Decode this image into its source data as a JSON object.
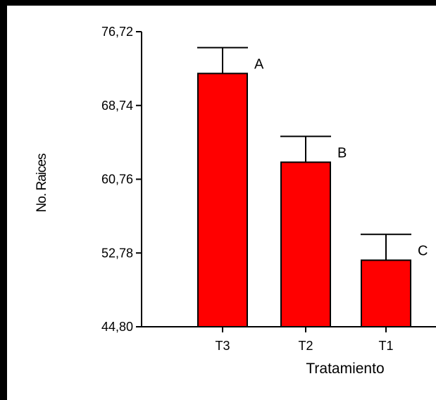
{
  "chart_data": {
    "type": "bar",
    "title": "",
    "xlabel": "Tratamiento",
    "ylabel": "No. Raices",
    "ylim": [
      44.8,
      76.72
    ],
    "yticks": [
      "44,80",
      "52,78",
      "60,76",
      "68,74",
      "76,72"
    ],
    "ytick_values": [
      44.8,
      52.78,
      60.76,
      68.74,
      76.72
    ],
    "categories": [
      "T3",
      "T2",
      "T1"
    ],
    "values": [
      72.2,
      62.6,
      52.0
    ],
    "error_upper": [
      75.0,
      65.4,
      54.8
    ],
    "significance_labels": [
      "A",
      "B",
      "C"
    ],
    "grid": false,
    "colors": {
      "bar": "#ff0000",
      "bar_edge": "#000000",
      "axis": "#000000",
      "frame": "#000000"
    }
  }
}
